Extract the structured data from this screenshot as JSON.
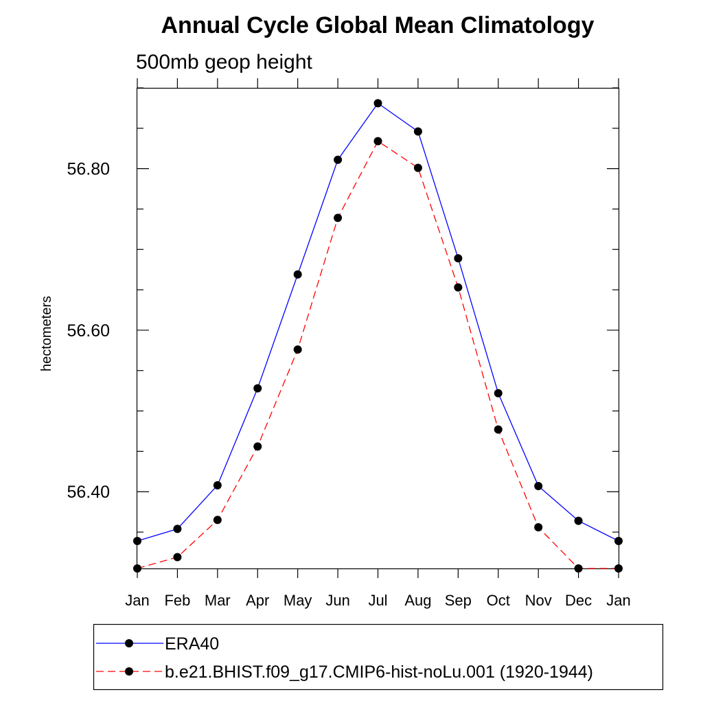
{
  "chart_data": {
    "type": "line",
    "title": "Annual Cycle Global Mean Climatology",
    "subtitle": "500mb geop height",
    "xlabel": "",
    "ylabel": "hectometers",
    "categories": [
      "Jan",
      "Feb",
      "Mar",
      "Apr",
      "May",
      "Jun",
      "Jul",
      "Aug",
      "Sep",
      "Oct",
      "Nov",
      "Dec",
      "Jan"
    ],
    "ylim": [
      56.305,
      56.9
    ],
    "yticks": [
      56.4,
      56.6,
      56.8
    ],
    "ytick_labels": [
      "56.40",
      "56.60",
      "56.80"
    ],
    "grid": false,
    "legend_position": "bottom",
    "series": [
      {
        "name": "ERA40",
        "color": "#0000ff",
        "line_style": "solid",
        "marker": "filled-circle",
        "values": [
          56.339,
          56.354,
          56.408,
          56.528,
          56.669,
          56.811,
          56.881,
          56.846,
          56.689,
          56.522,
          56.407,
          56.364,
          56.339
        ]
      },
      {
        "name": "b.e21.BHIST.f09_g17.CMIP6-hist-noLu.001 (1920-1944)",
        "color": "#ff0000",
        "line_style": "dashed",
        "marker": "filled-circle",
        "values": [
          56.305,
          56.319,
          56.365,
          56.456,
          56.576,
          56.739,
          56.834,
          56.801,
          56.653,
          56.477,
          56.356,
          56.305,
          56.305
        ]
      }
    ]
  }
}
